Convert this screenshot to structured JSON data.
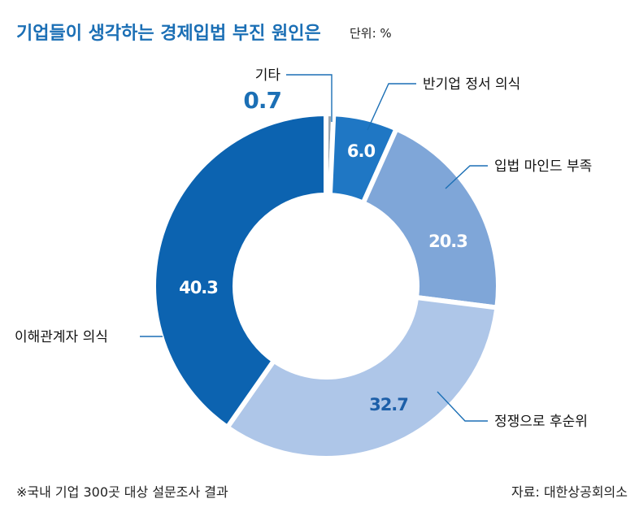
{
  "header": {
    "title": "기업들이 생각하는 경제입법 부진 원인은",
    "unit": "단위: %"
  },
  "chart_data": {
    "type": "pie",
    "donut": true,
    "unit": "%",
    "slices": [
      {
        "label": "기타",
        "value": 0.7,
        "color": "#9aa4ad"
      },
      {
        "label": "반기업 정서 의식",
        "value": 6.0,
        "color": "#1f77c4"
      },
      {
        "label": "입법 마인드 부족",
        "value": 20.3,
        "color": "#7fa6d8"
      },
      {
        "label": "정쟁으로 후순위",
        "value": 32.7,
        "color": "#aec6e8"
      },
      {
        "label": "이해관계자 의식",
        "value": 40.3,
        "color": "#0c63b0"
      }
    ],
    "leader_color": "#1b6fb5"
  },
  "footer": {
    "note": "※국내 기업 300곳 대상 설문조사 결과",
    "source": "자료: 대한상공회의소"
  }
}
